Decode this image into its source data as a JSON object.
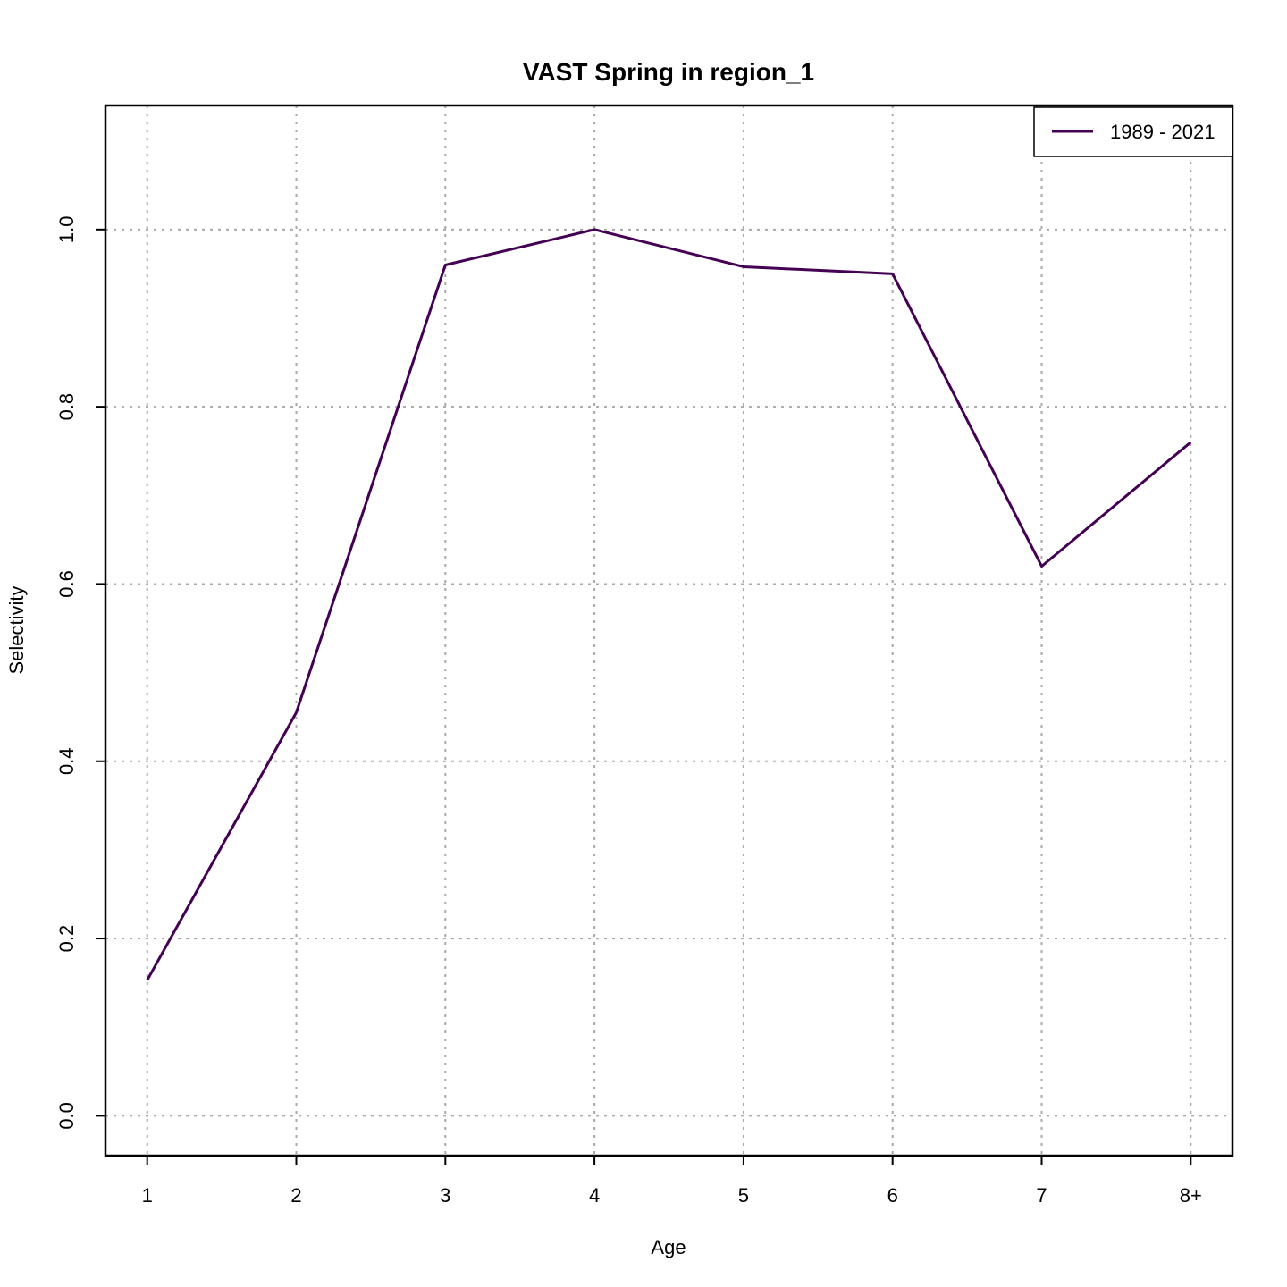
{
  "chart_data": {
    "type": "line",
    "title": "VAST Spring in region_1",
    "xlabel": "Age",
    "ylabel": "Selectivity",
    "categories": [
      "1",
      "2",
      "3",
      "4",
      "5",
      "6",
      "7",
      "8+"
    ],
    "ylim": [
      -0.045,
      1.14
    ],
    "yticks": [
      "0.0",
      "0.2",
      "0.4",
      "0.6",
      "0.8",
      "1.0"
    ],
    "grid": true,
    "legend_position": "top-right",
    "series": [
      {
        "name": "1989 - 2021",
        "color": "#440154",
        "values": [
          0.153,
          0.455,
          0.96,
          1.0,
          0.958,
          0.95,
          0.62,
          0.76
        ]
      }
    ]
  }
}
